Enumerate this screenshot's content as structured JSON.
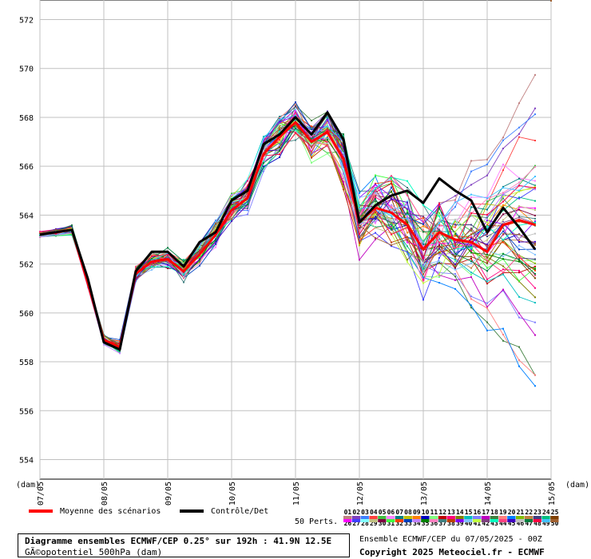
{
  "chart_data": {
    "type": "line",
    "x_labels": [
      "07/05",
      "08/05",
      "09/05",
      "10/05",
      "11/05",
      "12/05",
      "13/05",
      "14/05",
      "15/05"
    ],
    "x_unit": "(dam)",
    "y_unit": "(dam)",
    "y_ticks": [
      554,
      556,
      558,
      560,
      562,
      564,
      566,
      568,
      570,
      572
    ],
    "ylim": [
      553.2,
      572.8
    ],
    "grid": true,
    "steps_per_day": 4,
    "series": [
      {
        "name": "Moyenne des scénarios",
        "color": "#ff0000",
        "values": [
          563.2,
          563.3,
          563.4,
          561.2,
          558.9,
          558.6,
          561.6,
          562.1,
          562.2,
          561.7,
          562.4,
          563.2,
          564.2,
          564.7,
          566.5,
          567.2,
          567.8,
          567.0,
          567.4,
          566.3,
          563.7,
          564.3,
          564.1,
          563.6,
          562.6,
          563.3,
          563.0,
          562.9,
          562.5,
          563.6,
          563.8,
          563.6
        ]
      },
      {
        "name": "Contrôle/Det",
        "color": "#000000",
        "values": [
          563.2,
          563.3,
          563.4,
          561.4,
          558.8,
          558.5,
          561.7,
          562.5,
          562.5,
          561.9,
          562.9,
          563.3,
          564.6,
          565.0,
          566.9,
          567.3,
          568.0,
          567.3,
          568.2,
          567.1,
          563.7,
          564.4,
          564.8,
          565.0,
          564.5,
          565.5,
          565.0,
          564.6,
          563.3,
          564.3,
          563.5,
          562.6
        ]
      }
    ],
    "ensemble": {
      "count": 50,
      "values_shown_at_day_end": [
        570.5,
        569.0,
        568.5,
        567.5,
        566.8,
        566.0,
        565.7,
        565.0,
        564.0,
        563.0,
        562.0,
        561.5,
        561.0,
        560.5,
        560.0,
        559.0,
        558.7,
        557.0,
        556.5,
        556.1
      ]
    },
    "legend": {
      "mean_label": "Moyenne des scénarios",
      "control_label": "Contrôle/Det",
      "perts_label": "50 Perts.",
      "numbers_top": [
        "01",
        "02",
        "03",
        "04",
        "05",
        "06",
        "07",
        "08",
        "09",
        "10",
        "11",
        "12",
        "13",
        "14",
        "15",
        "16",
        "17",
        "18",
        "19",
        "20",
        "21",
        "22",
        "23",
        "24",
        "25"
      ],
      "numbers_bottom": [
        "26",
        "27",
        "28",
        "29",
        "30",
        "31",
        "32",
        "33",
        "34",
        "35",
        "36",
        "37",
        "38",
        "39",
        "40",
        "41",
        "42",
        "43",
        "44",
        "45",
        "46",
        "47",
        "48",
        "49",
        "50"
      ]
    }
  },
  "info": {
    "title": "Diagramme ensembles ECMWF/CEP 0.25° sur 192h : 41.9N 12.5E",
    "subtitle": "GÃ©opotentiel 500hPa (dam)",
    "run": "Ensemble ECMWF/CEP du 07/05/2025 - 00Z",
    "copyright": "Copyright 2025 Meteociel.fr - ECMWF"
  },
  "palette": [
    "#c08080",
    "#8040c0",
    "#4080ff",
    "#ff4040",
    "#40c040",
    "#ff80ff",
    "#008080",
    "#c0c000",
    "#ff8000",
    "#0000c0",
    "#80ff80",
    "#c00000",
    "#ff0080",
    "#808000",
    "#00c0c0",
    "#8080ff",
    "#c000c0",
    "#408040",
    "#ff8080",
    "#0080ff",
    "#80c000",
    "#c08040",
    "#404080",
    "#00c080",
    "#804000",
    "#ff00ff",
    "#4040ff",
    "#80ffff",
    "#c0c080",
    "#800040",
    "#40ff40",
    "#ff4000",
    "#0040c0",
    "#c080ff",
    "#008000",
    "#ff80c0",
    "#408080",
    "#c04000",
    "#8000ff",
    "#80c0ff",
    "#c0ff40",
    "#804080",
    "#00ffc0",
    "#ff4080",
    "#4000c0",
    "#c0c0c0",
    "#008040",
    "#ff0040",
    "#40c0ff",
    "#a06030"
  ]
}
